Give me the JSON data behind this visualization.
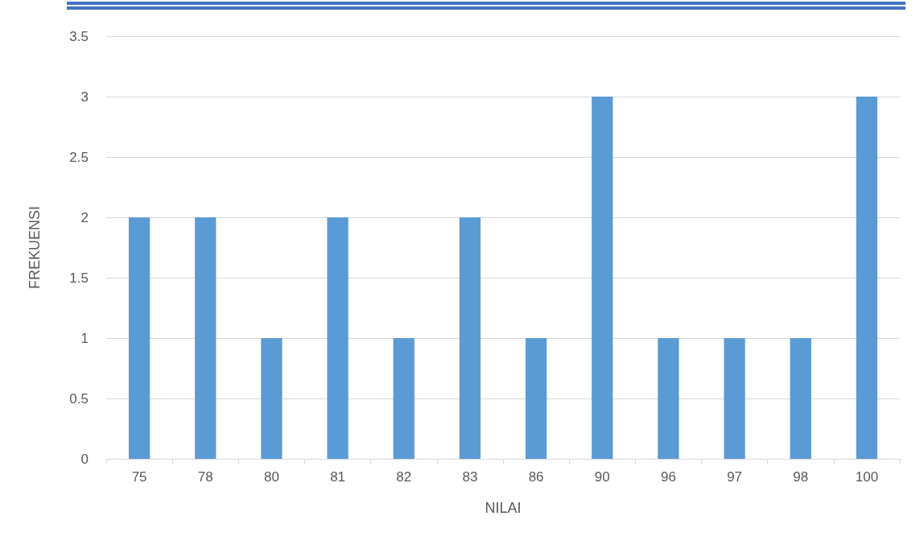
{
  "chart_data": {
    "type": "bar",
    "xlabel": "NILAI",
    "ylabel": "FREKUENSI",
    "categories": [
      "75",
      "78",
      "80",
      "81",
      "82",
      "83",
      "86",
      "90",
      "96",
      "97",
      "98",
      "100"
    ],
    "values": [
      2,
      2,
      1,
      2,
      1,
      2,
      1,
      3,
      1,
      1,
      1,
      3
    ],
    "color": "#5b9bd5",
    "ylim": [
      0,
      3.5
    ],
    "yticks": [
      0,
      0.5,
      1,
      1.5,
      2,
      2.5,
      3,
      3.5
    ],
    "grid": "y"
  }
}
